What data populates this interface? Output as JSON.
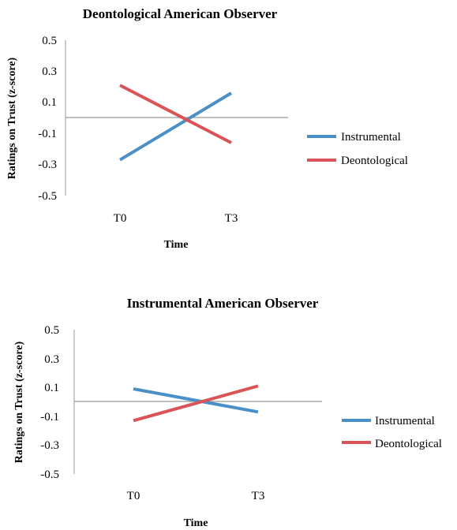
{
  "chart_data": [
    {
      "type": "line",
      "title": "Deontological American Observer",
      "xlabel": "Time",
      "ylabel": "Ratings on Trust (z-score)",
      "categories": [
        "T0",
        "T3"
      ],
      "ylim": [
        -0.5,
        0.5
      ],
      "yticks": [
        "0.5",
        "0.3",
        "0.1",
        "-0.1",
        "-0.3",
        "-0.5"
      ],
      "legend_position": "right",
      "series": [
        {
          "name": "Instrumental",
          "color": "#4a90c8",
          "values": [
            -0.27,
            0.16
          ]
        },
        {
          "name": "Deontological",
          "color": "#d95457",
          "values": [
            0.21,
            -0.16
          ]
        }
      ]
    },
    {
      "type": "line",
      "title": "Instrumental American Observer",
      "xlabel": "Time",
      "ylabel": "Ratings on Trust (z-score)",
      "categories": [
        "T0",
        "T3"
      ],
      "ylim": [
        -0.5,
        0.5
      ],
      "yticks": [
        "0.5",
        "0.3",
        "0.1",
        "-0.1",
        "-0.3",
        "-0.5"
      ],
      "legend_position": "right",
      "series": [
        {
          "name": "Instrumental",
          "color": "#4a90c8",
          "values": [
            0.09,
            -0.07
          ]
        },
        {
          "name": "Deontological",
          "color": "#d95457",
          "values": [
            -0.13,
            0.11
          ]
        }
      ]
    }
  ]
}
